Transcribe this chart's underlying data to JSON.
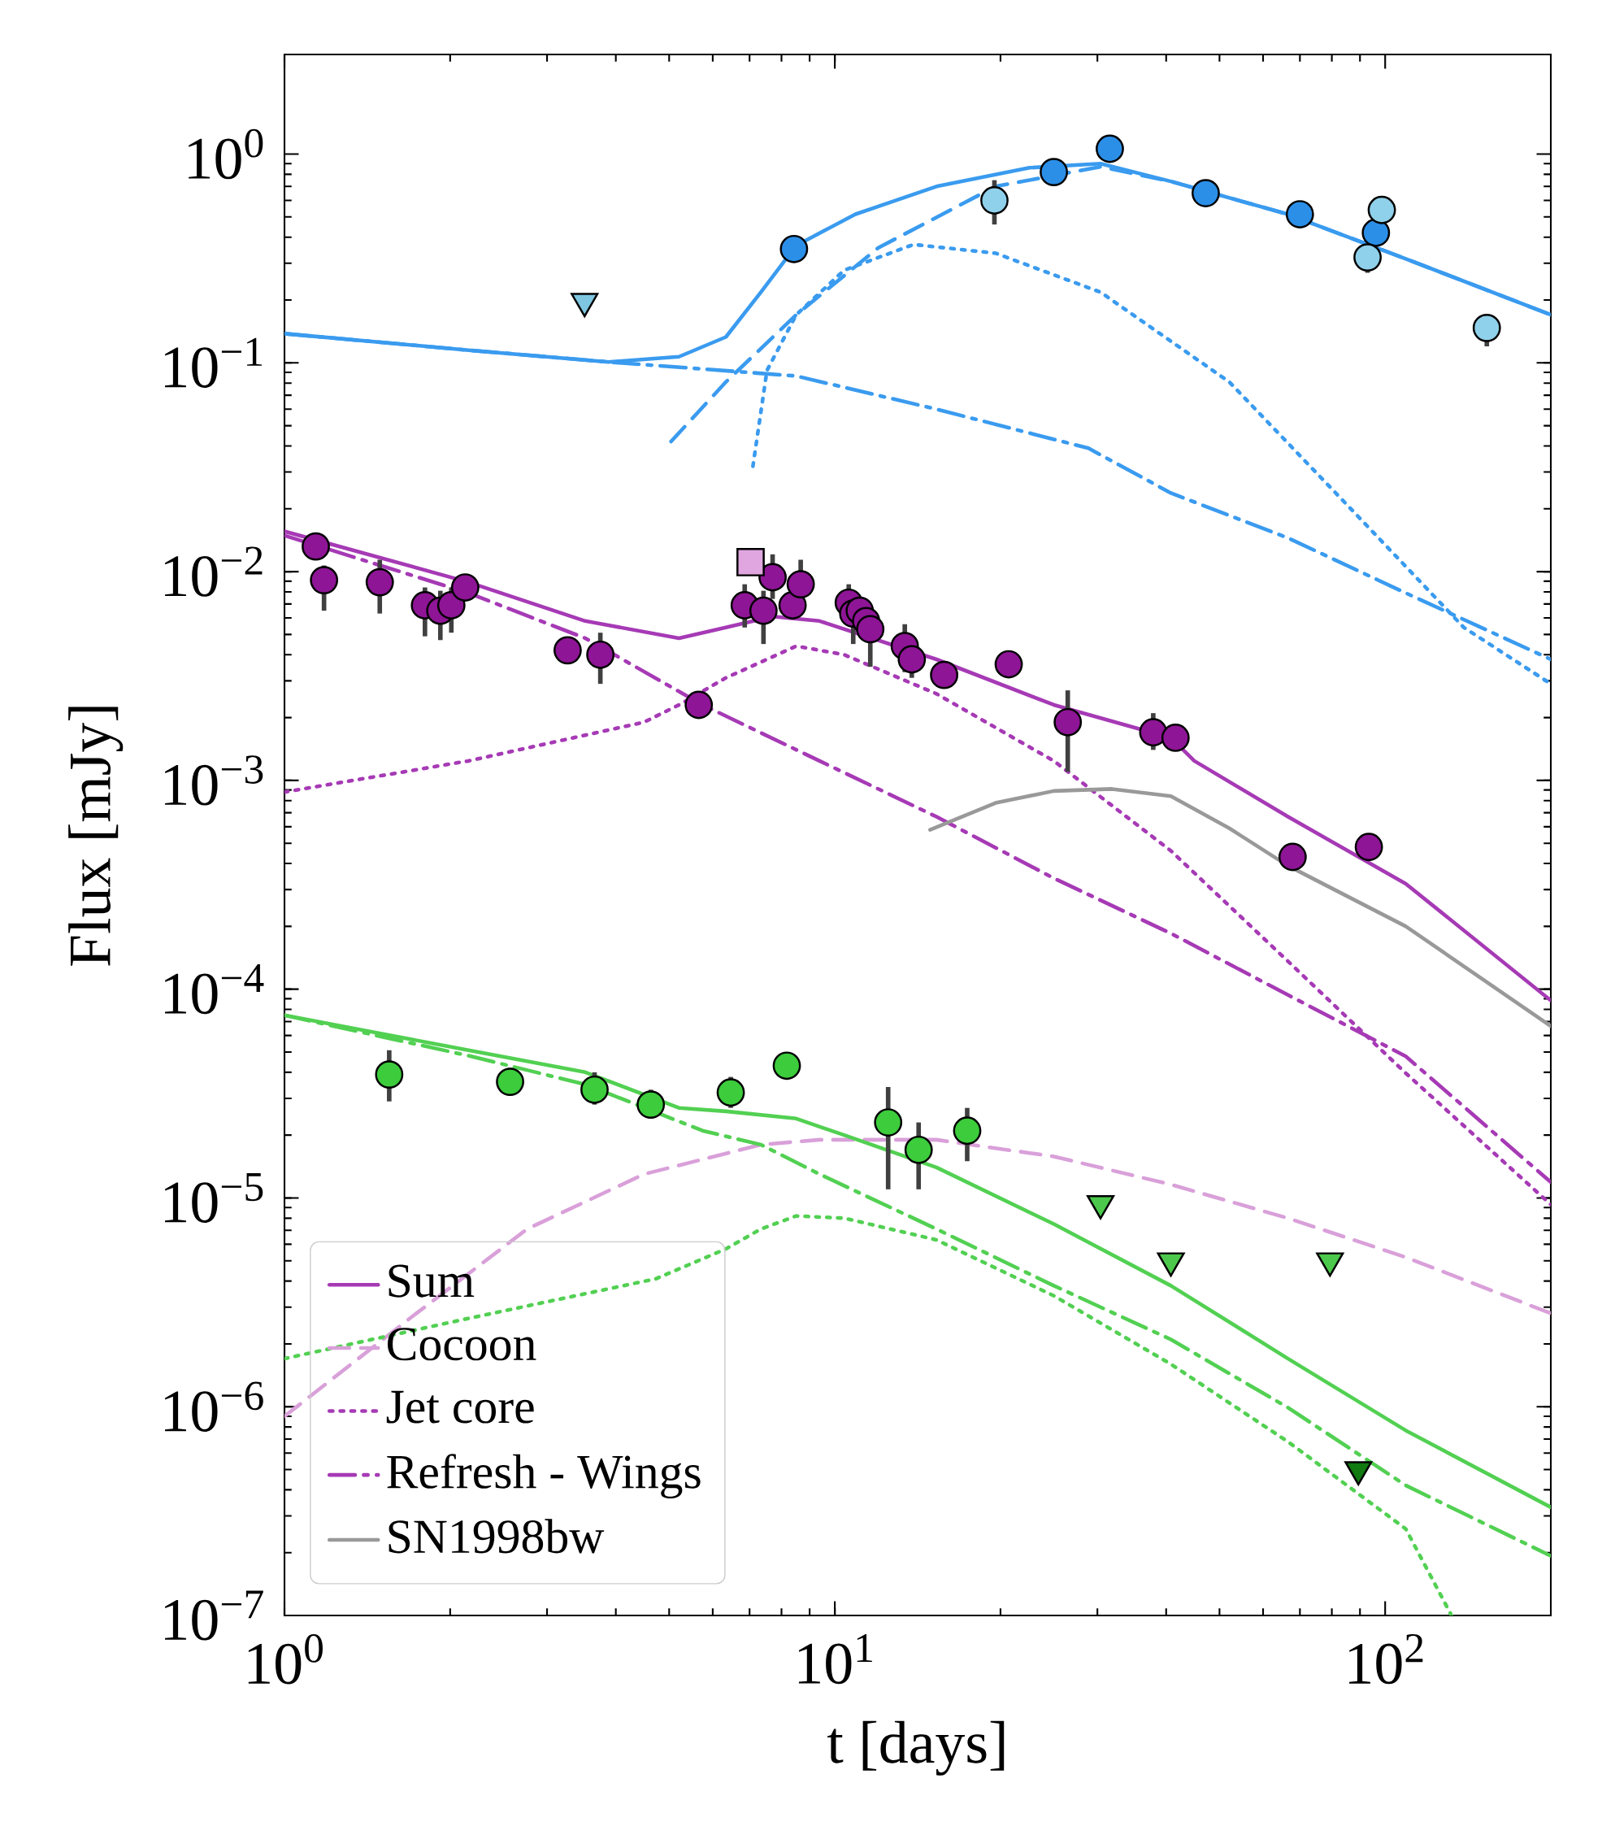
{
  "chart_data": {
    "type": "line",
    "xlabel": "t [days]",
    "ylabel": "Flux [mJy]",
    "log": "xy",
    "xlim": [
      1,
      200
    ],
    "ylim": [
      1e-07,
      3
    ],
    "xticks": [
      {
        "value": 1,
        "label": "10$^{0}$"
      },
      {
        "value": 10,
        "label": "10$^{1}$"
      },
      {
        "value": 100,
        "label": "10$^{2}$"
      }
    ],
    "yticks": [
      {
        "value": 1e-07,
        "label": "10$^{−7}$"
      },
      {
        "value": 1e-06,
        "label": "10$^{−6}$"
      },
      {
        "value": 1e-05,
        "label": "10$^{−5}$"
      },
      {
        "value": 0.0001,
        "label": "10$^{−4}$"
      },
      {
        "value": 0.001,
        "label": "10$^{−3}$"
      },
      {
        "value": 0.01,
        "label": "10$^{−2}$"
      },
      {
        "value": 0.1,
        "label": "10$^{−1}$"
      },
      {
        "value": 1,
        "label": "10$^{0}$"
      }
    ],
    "legend": "bottom left",
    "series": [
      {
        "name": "Sum",
        "color": "#a63ab5",
        "line_style": "solid",
        "x": [
          1,
          2.16,
          3.52,
          5.21,
          6.34,
          7.71,
          9.38,
          15.3,
          25.0,
          40.8,
          45.0,
          66.6,
          109,
          200
        ],
        "values": [
          0.0156,
          0.0089,
          0.0058,
          0.0048,
          0.0054,
          0.0061,
          0.0058,
          0.0038,
          0.0023,
          0.0016,
          0.00124,
          0.00067,
          0.00032,
          8.83e-05
        ]
      },
      {
        "name": "Cocoon",
        "color": "#d9a0d9",
        "line_style": "dashed",
        "x": [
          1,
          1.69,
          2.76,
          4.5,
          7.34,
          9.38,
          15.3,
          25.0,
          40.8,
          66.6,
          109,
          200
        ],
        "values": [
          9e-07,
          2.65e-06,
          7.1e-06,
          1.3e-05,
          1.8e-05,
          1.9e-05,
          1.9e-05,
          1.58e-05,
          1.16e-05,
          8e-06,
          5.2e-06,
          2.8e-06
        ]
      },
      {
        "name": "Jet core",
        "color": "#a63ab5",
        "line_style": "dotted",
        "x": [
          1,
          2.16,
          4.5,
          5.21,
          6.34,
          8.51,
          10.4,
          15.3,
          25.0,
          40.8,
          66.6,
          109,
          200
        ],
        "values": [
          0.00088,
          0.00124,
          0.0019,
          0.0023,
          0.0031,
          0.0044,
          0.004,
          0.0026,
          0.00124,
          0.00046,
          0.000136,
          3.96e-05,
          9.3e-06
        ]
      },
      {
        "name": "Refresh - Wings",
        "color": "#a63ab5",
        "line_style": "dashdot",
        "x": [
          1,
          2.16,
          3.52,
          5.75,
          9.38,
          15.3,
          25.0,
          40.8,
          66.6,
          109,
          200
        ],
        "values": [
          0.0149,
          0.0079,
          0.0048,
          0.0023,
          0.00124,
          0.00067,
          0.00034,
          0.000185,
          9.38e-05,
          4.77e-05,
          1.19e-05
        ]
      },
      {
        "name": "SN1998bw",
        "color": "#999999",
        "line_style": "solid",
        "x": [
          14.9,
          19.6,
          25.0,
          31.9,
          40.8,
          52.1,
          66.6,
          109,
          200
        ],
        "values": [
          0.00058,
          0.00078,
          0.00089,
          0.00091,
          0.00084,
          0.00059,
          0.00039,
          0.0002,
          6.65e-05
        ]
      },
      {
        "color": "#3a9bef",
        "line_style": "solid",
        "x": [
          1,
          2.16,
          3.88,
          5.21,
          6.34,
          7.34,
          8.51,
          10.9,
          15.3,
          22.6,
          30.4,
          40.8,
          66.6,
          109,
          200
        ],
        "values": [
          0.138,
          0.115,
          0.101,
          0.107,
          0.133,
          0.218,
          0.365,
          0.515,
          0.7,
          0.86,
          0.9,
          0.74,
          0.515,
          0.315,
          0.17
        ]
      },
      {
        "color": "#3a9bef",
        "line_style": "dashed",
        "x": [
          5.04,
          6.34,
          8.51,
          12.0,
          19.6,
          30.4,
          40.8,
          66.6,
          109,
          200
        ],
        "values": [
          0.042,
          0.081,
          0.17,
          0.356,
          0.7,
          0.87,
          0.74,
          0.515,
          0.315,
          0.17
        ]
      },
      {
        "color": "#3a9bef",
        "line_style": "dotted",
        "x": [
          7.1,
          7.53,
          8.51,
          10.4,
          13.9,
          19.6,
          30.4,
          52.1,
          85.1,
          139,
          200
        ],
        "values": [
          0.032,
          0.092,
          0.17,
          0.278,
          0.369,
          0.335,
          0.218,
          0.081,
          0.021,
          0.0054,
          0.0029
        ]
      },
      {
        "color": "#3a9bef",
        "line_style": "dashdot",
        "x": [
          1,
          2.16,
          3.88,
          8.51,
          15.3,
          28.9,
          40.8,
          66.6,
          109,
          200
        ],
        "values": [
          0.138,
          0.115,
          0.101,
          0.0865,
          0.06,
          0.039,
          0.0238,
          0.0145,
          0.0079,
          0.0038
        ]
      },
      {
        "color": "#52d052",
        "line_style": "solid",
        "x": [
          1,
          2.16,
          3.52,
          5.21,
          6.34,
          8.51,
          10.4,
          15.3,
          25.0,
          40.8,
          66.6,
          109,
          200
        ],
        "values": [
          7.5e-05,
          5.1e-05,
          4e-05,
          2.7e-05,
          2.6e-05,
          2.4e-05,
          2e-05,
          1.4e-05,
          7.5e-06,
          3.8e-06,
          1.7e-06,
          7.7e-07,
          3.3e-07
        ]
      },
      {
        "color": "#52d052",
        "line_style": "dashdot",
        "x": [
          1,
          2.16,
          3.52,
          5.75,
          7.34,
          9.38,
          15.3,
          25.0,
          40.8,
          66.6,
          109,
          200
        ],
        "values": [
          7.5e-05,
          4.8e-05,
          3.5e-05,
          2.1e-05,
          1.8e-05,
          1.3e-05,
          7.1e-06,
          3.8e-06,
          2.1e-06,
          9.9e-07,
          4.2e-07,
          1.93e-07
        ]
      },
      {
        "color": "#52d052",
        "line_style": "dotted",
        "x": [
          1,
          2.16,
          4.73,
          6.34,
          7.34,
          8.51,
          10.4,
          15.3,
          25.0,
          40.8,
          66.6,
          109,
          132
        ],
        "values": [
          1.7e-06,
          2.65e-06,
          4.1e-06,
          5.7e-06,
          7.1e-06,
          8.2e-06,
          8e-06,
          6.3e-06,
          3.4e-06,
          1.6e-06,
          6.8e-07,
          2.6e-07,
          1e-07
        ]
      },
      {
        "type": "scatter",
        "color": "#2b8fe8",
        "marker": "circle",
        "x": [
          8.43,
          25.0,
          31.6,
          47.2,
          70.0,
          96.2
        ],
        "values": [
          0.351,
          0.82,
          1.06,
          0.65,
          0.515,
          0.42
        ]
      },
      {
        "type": "scatter",
        "color": "#8fd0ea",
        "marker": "circle",
        "x": [
          19.5,
          98.6,
          92.9,
          153
        ],
        "values": [
          0.6,
          0.54,
          0.32,
          0.147
        ],
        "errors": [
          [
            0.46,
            0.75
          ],
          null,
          [
            0.27,
            0.37
          ],
          [
            0.12,
            0.17
          ]
        ]
      },
      {
        "type": "scatter",
        "color": "#7fc6e0",
        "marker": "triangle",
        "x": [
          3.51
        ],
        "values": [
          0.197
        ]
      },
      {
        "type": "scatter",
        "color": "#8e1596",
        "marker": "circle",
        "x": [
          1.14,
          1.18,
          1.49,
          1.8,
          1.92,
          2.01,
          2.13,
          3.27,
          3.75,
          5.66,
          6.86,
          7.42,
          7.71,
          8.38,
          8.67,
          10.6,
          10.8,
          11.1,
          11.4,
          11.6,
          13.4,
          13.8,
          15.8,
          20.7,
          26.5,
          37.9,
          41.6,
          67.9,
          93.4
        ],
        "values": [
          0.0132,
          0.0091,
          0.0089,
          0.0069,
          0.0065,
          0.0069,
          0.0084,
          0.0042,
          0.004,
          0.0023,
          0.0069,
          0.0065,
          0.0094,
          0.0069,
          0.0087,
          0.0071,
          0.0063,
          0.0065,
          0.0058,
          0.0053,
          0.0044,
          0.0038,
          0.0032,
          0.0036,
          0.0019,
          0.0017,
          0.0016,
          0.00043,
          0.00048
        ],
        "errors": [
          null,
          [
            0.0065,
            0.0107
          ],
          [
            0.0063,
            0.0114
          ],
          [
            0.0049,
            0.0084
          ],
          [
            0.0047,
            0.0081
          ],
          [
            0.0051,
            0.0084
          ],
          null,
          null,
          [
            0.0029,
            0.0051
          ],
          null,
          [
            0.0054,
            0.0087
          ],
          [
            0.0045,
            0.0081
          ],
          [
            0.0074,
            0.0121
          ],
          null,
          [
            0.0087,
            0.0114
          ],
          [
            0.0056,
            0.0087
          ],
          [
            0.0045,
            0.0081
          ],
          null,
          null,
          [
            0.0035,
            0.0065
          ],
          [
            0.0033,
            0.0056
          ],
          [
            0.0031,
            0.0048
          ],
          null,
          null,
          [
            0.0011,
            0.0027
          ],
          [
            0.0014,
            0.0021
          ],
          null,
          null,
          null
        ]
      },
      {
        "type": "scatter",
        "color": "#e0a6e0",
        "marker": "square",
        "x": [
          7.03
        ],
        "values": [
          0.0111
        ]
      },
      {
        "type": "scatter",
        "color": "#3ccc3c",
        "marker": "circle",
        "x": [
          1.55,
          2.57,
          3.66,
          4.63,
          6.47,
          8.18,
          12.5,
          14.2,
          17.4
        ],
        "values": [
          3.9e-05,
          3.6e-05,
          3.3e-05,
          2.8e-05,
          3.2e-05,
          4.3e-05,
          2.3e-05,
          1.7e-05,
          2.1e-05
        ],
        "errors": [
          [
            2.9e-05,
            5.1e-05
          ],
          [
            3.1e-05,
            4.2e-05
          ],
          [
            2.8e-05,
            4e-05
          ],
          [
            2.4e-05,
            3.3e-05
          ],
          [
            2.7e-05,
            3.8e-05
          ],
          [
            3.8e-05,
            5e-05
          ],
          [
            1.1e-05,
            3.4e-05
          ],
          [
            1.1e-05,
            2.3e-05
          ],
          [
            1.5e-05,
            2.7e-05
          ]
        ]
      },
      {
        "type": "scatter",
        "color": "#4cc94c",
        "marker": "triangle",
        "x": [
          30.4,
          40.8,
          79.4
        ],
        "values": [
          9.4e-06,
          5e-06,
          5e-06
        ]
      },
      {
        "type": "scatter",
        "color": "#117a11",
        "marker": "triangle",
        "x": [
          89.4
        ],
        "values": [
          5e-07
        ]
      }
    ]
  }
}
